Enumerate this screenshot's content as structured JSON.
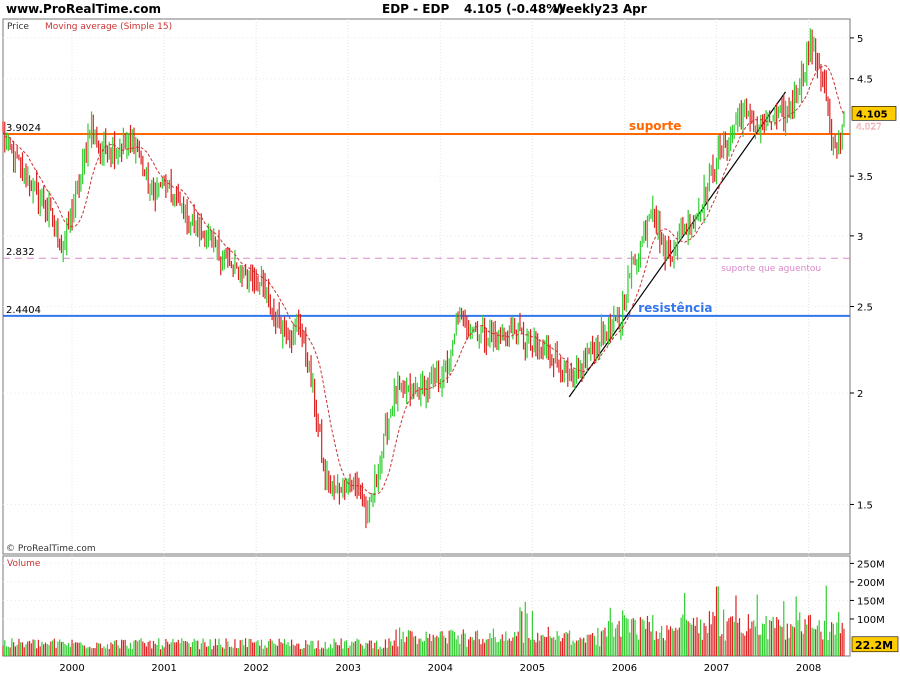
{
  "header": {
    "site": "www.ProRealTime.com",
    "symbol": "EDP - EDP",
    "quote": "4.105 (-0.48%)",
    "period": "Weekly",
    "date": "23 Apr"
  },
  "colors": {
    "up": "#33cc33",
    "down": "#dd2222",
    "ma": "#cc3333",
    "support": "#ff6600",
    "resistance": "#3377ee",
    "dashed_support": "#dd88cc",
    "trendline": "#000000",
    "price_badge": "#ffcc00"
  },
  "chart_data": [
    {
      "type": "candlestick",
      "panel_label": "Price",
      "indicator_label": "Moving average (Simple 15)",
      "y_scale": "log",
      "ylim": [
        1.32,
        5.25
      ],
      "y_ticks": [
        1.5,
        2,
        2.5,
        3,
        3.5,
        4.5,
        5
      ],
      "x_range": [
        1999.25,
        2008.45
      ],
      "x_ticks": [
        "2000",
        "2001",
        "2002",
        "2003",
        "2004",
        "2005",
        "2006",
        "2007",
        "2008"
      ],
      "x_tick_values": [
        2000,
        2001,
        2002,
        2003,
        2004,
        2005,
        2006,
        2007,
        2008
      ],
      "last_price": "4.105",
      "ma_last": "4.027",
      "watermark": "© ProRealTime.com",
      "anchor_prices": [
        [
          1999.25,
          3.9
        ],
        [
          1999.45,
          3.55
        ],
        [
          1999.75,
          3.2
        ],
        [
          1999.9,
          2.9
        ],
        [
          2000.1,
          3.5
        ],
        [
          2000.2,
          4.0
        ],
        [
          2000.3,
          3.75
        ],
        [
          2000.7,
          3.8
        ],
        [
          2000.85,
          3.35
        ],
        [
          2001.0,
          3.45
        ],
        [
          2001.3,
          3.1
        ],
        [
          2001.5,
          2.95
        ],
        [
          2001.75,
          2.75
        ],
        [
          2002.0,
          2.7
        ],
        [
          2002.2,
          2.45
        ],
        [
          2002.4,
          2.3
        ],
        [
          2002.45,
          2.45
        ],
        [
          2002.6,
          2.05
        ],
        [
          2002.75,
          1.62
        ],
        [
          2002.85,
          1.55
        ],
        [
          2003.0,
          1.6
        ],
        [
          2003.15,
          1.55
        ],
        [
          2003.2,
          1.42
        ],
        [
          2003.3,
          1.6
        ],
        [
          2003.5,
          2.0
        ],
        [
          2003.7,
          2.0
        ],
        [
          2003.9,
          2.05
        ],
        [
          2004.1,
          2.15
        ],
        [
          2004.2,
          2.45
        ],
        [
          2004.4,
          2.35
        ],
        [
          2004.6,
          2.3
        ],
        [
          2004.8,
          2.35
        ],
        [
          2005.0,
          2.25
        ],
        [
          2005.2,
          2.22
        ],
        [
          2005.35,
          2.1
        ],
        [
          2005.45,
          2.05
        ],
        [
          2005.6,
          2.2
        ],
        [
          2005.8,
          2.35
        ],
        [
          2005.95,
          2.4
        ],
        [
          2006.05,
          2.7
        ],
        [
          2006.2,
          3.0
        ],
        [
          2006.3,
          3.3
        ],
        [
          2006.4,
          2.95
        ],
        [
          2006.5,
          2.85
        ],
        [
          2006.6,
          3.05
        ],
        [
          2006.75,
          3.1
        ],
        [
          2006.85,
          3.3
        ],
        [
          2006.95,
          3.55
        ],
        [
          2007.05,
          3.75
        ],
        [
          2007.15,
          3.9
        ],
        [
          2007.25,
          4.15
        ],
        [
          2007.35,
          4.05
        ],
        [
          2007.45,
          3.95
        ],
        [
          2007.6,
          4.05
        ],
        [
          2007.75,
          4.1
        ],
        [
          2007.85,
          4.3
        ],
        [
          2007.95,
          4.6
        ],
        [
          2008.02,
          4.95
        ],
        [
          2008.1,
          4.7
        ],
        [
          2008.2,
          4.3
        ],
        [
          2008.25,
          3.75
        ],
        [
          2008.32,
          3.8
        ],
        [
          2008.4,
          4.105
        ]
      ],
      "annotations": [
        {
          "label": "suporte",
          "kind": "support",
          "price": 3.9024,
          "price_label": "3.9024"
        },
        {
          "label": "resistência",
          "kind": "resistance",
          "price": 2.4404,
          "price_label": "2.4404"
        },
        {
          "label": "suporte que aguentou",
          "kind": "dashed_support",
          "price": 2.832,
          "price_label": "2.832"
        }
      ],
      "trendline": [
        [
          2005.4,
          1.98
        ],
        [
          2007.75,
          4.35
        ]
      ]
    },
    {
      "type": "bar",
      "panel_label": "Volume",
      "ylim": [
        0,
        270
      ],
      "y_ticks": [
        100,
        150,
        200,
        250
      ],
      "y_tick_labels": [
        "100M",
        "150M",
        "200M",
        "250M"
      ],
      "last_volume": "22.2M",
      "unit": "M"
    }
  ]
}
